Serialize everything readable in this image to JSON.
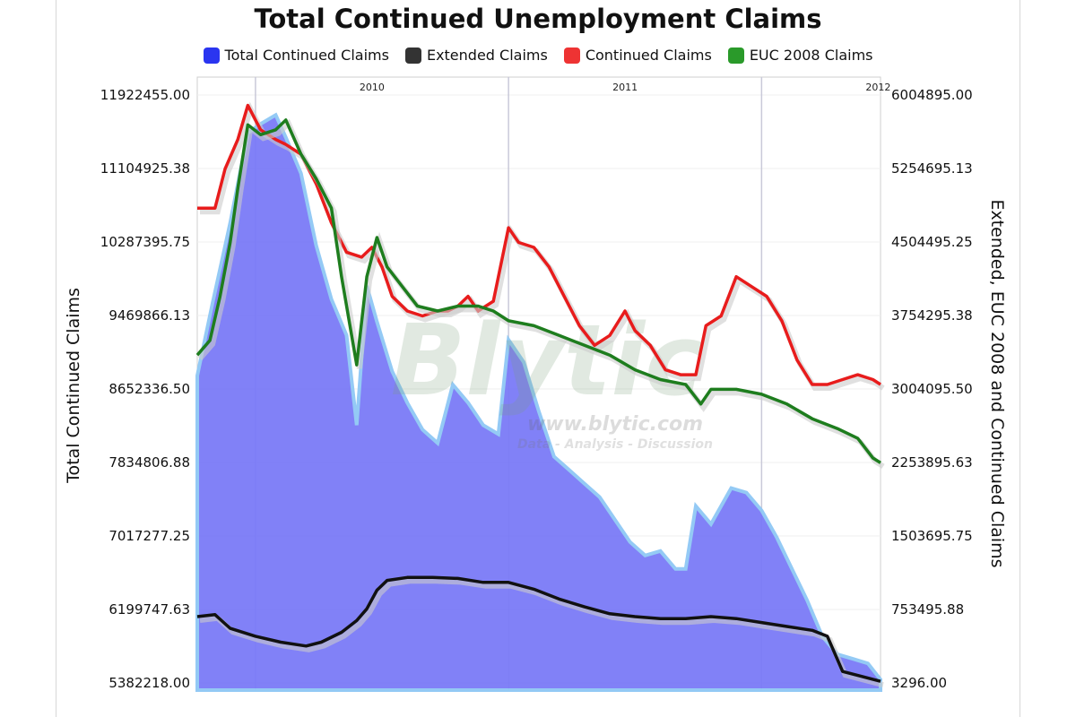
{
  "chart_data": {
    "type": "area+line",
    "title": "Total Continued Unemployment Claims",
    "y_left_label": "Total Continued Claims",
    "y_right_label": "Extended, EUC 2008 and Continued Claims",
    "y_left_ticks": [
      "11922455.00",
      "11104925.38",
      "10287395.75",
      "9469866.13",
      "8652336.50",
      "7834806.88",
      "7017277.25",
      "6199747.63",
      "5382218.00"
    ],
    "y_right_ticks": [
      "6004895.00",
      "5254695.13",
      "4504495.25",
      "3754295.38",
      "3004095.50",
      "2253895.63",
      "1503695.75",
      "753495.88",
      "3296.00"
    ],
    "ylim_left": [
      5382218,
      11922455
    ],
    "ylim_right": [
      3296,
      6004895
    ],
    "x_range": [
      2009.77,
      2012.47
    ],
    "year_labels": [
      {
        "label": "2010",
        "x": 2010
      },
      {
        "label": "2011",
        "x": 2011
      },
      {
        "label": "2012",
        "x": 2012
      }
    ],
    "grid": true,
    "legend_position": "top",
    "series": [
      {
        "name": "Total Continued Claims",
        "axis": "left",
        "color": "#7b7bf7",
        "style": "area",
        "points": [
          [
            2009.77,
            8800000
          ],
          [
            2009.83,
            9600000
          ],
          [
            2009.9,
            10500000
          ],
          [
            2009.97,
            11500000
          ],
          [
            2010.02,
            11600000
          ],
          [
            2010.08,
            11700000
          ],
          [
            2010.12,
            11450000
          ],
          [
            2010.18,
            11050000
          ],
          [
            2010.24,
            10250000
          ],
          [
            2010.3,
            9650000
          ],
          [
            2010.36,
            9250000
          ],
          [
            2010.4,
            8250000
          ],
          [
            2010.44,
            9800000
          ],
          [
            2010.48,
            9400000
          ],
          [
            2010.54,
            8850000
          ],
          [
            2010.6,
            8500000
          ],
          [
            2010.66,
            8200000
          ],
          [
            2010.72,
            8050000
          ],
          [
            2010.78,
            8700000
          ],
          [
            2010.84,
            8500000
          ],
          [
            2010.9,
            8250000
          ],
          [
            2010.96,
            8150000
          ],
          [
            2011.0,
            9200000
          ],
          [
            2011.06,
            8950000
          ],
          [
            2011.12,
            8400000
          ],
          [
            2011.18,
            7900000
          ],
          [
            2011.24,
            7750000
          ],
          [
            2011.3,
            7600000
          ],
          [
            2011.36,
            7450000
          ],
          [
            2011.42,
            7200000
          ],
          [
            2011.48,
            6950000
          ],
          [
            2011.54,
            6800000
          ],
          [
            2011.6,
            6850000
          ],
          [
            2011.66,
            6650000
          ],
          [
            2011.7,
            6650000
          ],
          [
            2011.74,
            7350000
          ],
          [
            2011.8,
            7150000
          ],
          [
            2011.88,
            7550000
          ],
          [
            2011.94,
            7500000
          ],
          [
            2012.0,
            7300000
          ],
          [
            2012.06,
            7000000
          ],
          [
            2012.12,
            6650000
          ],
          [
            2012.18,
            6300000
          ],
          [
            2012.24,
            5900000
          ],
          [
            2012.3,
            5700000
          ],
          [
            2012.36,
            5650000
          ],
          [
            2012.42,
            5600000
          ],
          [
            2012.47,
            5420000
          ]
        ]
      },
      {
        "name": "Extended Claims",
        "axis": "right",
        "color": "#111111",
        "style": "line",
        "points": [
          [
            2009.77,
            680000
          ],
          [
            2009.84,
            700000
          ],
          [
            2009.9,
            560000
          ],
          [
            2010.0,
            480000
          ],
          [
            2010.1,
            420000
          ],
          [
            2010.2,
            380000
          ],
          [
            2010.26,
            420000
          ],
          [
            2010.34,
            520000
          ],
          [
            2010.4,
            640000
          ],
          [
            2010.44,
            760000
          ],
          [
            2010.48,
            950000
          ],
          [
            2010.52,
            1050000
          ],
          [
            2010.6,
            1080000
          ],
          [
            2010.7,
            1080000
          ],
          [
            2010.8,
            1070000
          ],
          [
            2010.9,
            1030000
          ],
          [
            2011.0,
            1030000
          ],
          [
            2011.1,
            960000
          ],
          [
            2011.2,
            860000
          ],
          [
            2011.3,
            780000
          ],
          [
            2011.4,
            710000
          ],
          [
            2011.5,
            680000
          ],
          [
            2011.6,
            660000
          ],
          [
            2011.7,
            660000
          ],
          [
            2011.8,
            680000
          ],
          [
            2011.9,
            660000
          ],
          [
            2012.0,
            620000
          ],
          [
            2012.1,
            580000
          ],
          [
            2012.2,
            540000
          ],
          [
            2012.26,
            480000
          ],
          [
            2012.32,
            120000
          ],
          [
            2012.38,
            80000
          ],
          [
            2012.47,
            20000
          ]
        ]
      },
      {
        "name": "Continued Claims",
        "axis": "right",
        "color": "#e81c1c",
        "style": "line",
        "points": [
          [
            2009.77,
            4850000
          ],
          [
            2009.84,
            4850000
          ],
          [
            2009.88,
            5250000
          ],
          [
            2009.93,
            5550000
          ],
          [
            2009.97,
            5900000
          ],
          [
            2010.02,
            5650000
          ],
          [
            2010.08,
            5550000
          ],
          [
            2010.12,
            5500000
          ],
          [
            2010.18,
            5400000
          ],
          [
            2010.24,
            5100000
          ],
          [
            2010.3,
            4700000
          ],
          [
            2010.36,
            4400000
          ],
          [
            2010.42,
            4350000
          ],
          [
            2010.46,
            4450000
          ],
          [
            2010.5,
            4250000
          ],
          [
            2010.54,
            3950000
          ],
          [
            2010.6,
            3800000
          ],
          [
            2010.66,
            3750000
          ],
          [
            2010.72,
            3800000
          ],
          [
            2010.76,
            3800000
          ],
          [
            2010.8,
            3850000
          ],
          [
            2010.84,
            3950000
          ],
          [
            2010.88,
            3800000
          ],
          [
            2010.94,
            3900000
          ],
          [
            2011.0,
            4650000
          ],
          [
            2011.04,
            4500000
          ],
          [
            2011.1,
            4450000
          ],
          [
            2011.16,
            4250000
          ],
          [
            2011.22,
            3950000
          ],
          [
            2011.28,
            3650000
          ],
          [
            2011.34,
            3450000
          ],
          [
            2011.4,
            3550000
          ],
          [
            2011.46,
            3800000
          ],
          [
            2011.5,
            3600000
          ],
          [
            2011.56,
            3450000
          ],
          [
            2011.62,
            3200000
          ],
          [
            2011.68,
            3150000
          ],
          [
            2011.74,
            3150000
          ],
          [
            2011.78,
            3650000
          ],
          [
            2011.84,
            3750000
          ],
          [
            2011.9,
            4150000
          ],
          [
            2011.96,
            4050000
          ],
          [
            2012.02,
            3950000
          ],
          [
            2012.08,
            3700000
          ],
          [
            2012.14,
            3300000
          ],
          [
            2012.2,
            3050000
          ],
          [
            2012.26,
            3050000
          ],
          [
            2012.32,
            3100000
          ],
          [
            2012.38,
            3150000
          ],
          [
            2012.44,
            3100000
          ],
          [
            2012.47,
            3050000
          ]
        ]
      },
      {
        "name": "EUC 2008 Claims",
        "axis": "right",
        "color": "#1e7d1e",
        "style": "line",
        "points": [
          [
            2009.77,
            3350000
          ],
          [
            2009.82,
            3500000
          ],
          [
            2009.86,
            3950000
          ],
          [
            2009.9,
            4500000
          ],
          [
            2009.93,
            5050000
          ],
          [
            2009.97,
            5700000
          ],
          [
            2010.02,
            5600000
          ],
          [
            2010.08,
            5650000
          ],
          [
            2010.12,
            5750000
          ],
          [
            2010.18,
            5400000
          ],
          [
            2010.24,
            5150000
          ],
          [
            2010.3,
            4850000
          ],
          [
            2010.34,
            4150000
          ],
          [
            2010.4,
            3250000
          ],
          [
            2010.44,
            4150000
          ],
          [
            2010.48,
            4550000
          ],
          [
            2010.52,
            4250000
          ],
          [
            2010.58,
            4050000
          ],
          [
            2010.64,
            3850000
          ],
          [
            2010.72,
            3800000
          ],
          [
            2010.8,
            3850000
          ],
          [
            2010.88,
            3850000
          ],
          [
            2010.94,
            3800000
          ],
          [
            2011.0,
            3700000
          ],
          [
            2011.1,
            3650000
          ],
          [
            2011.2,
            3550000
          ],
          [
            2011.3,
            3450000
          ],
          [
            2011.4,
            3350000
          ],
          [
            2011.5,
            3200000
          ],
          [
            2011.6,
            3100000
          ],
          [
            2011.7,
            3050000
          ],
          [
            2011.76,
            2850000
          ],
          [
            2011.8,
            3000000
          ],
          [
            2011.9,
            3000000
          ],
          [
            2012.0,
            2950000
          ],
          [
            2012.1,
            2850000
          ],
          [
            2012.2,
            2700000
          ],
          [
            2012.3,
            2600000
          ],
          [
            2012.38,
            2500000
          ],
          [
            2012.44,
            2300000
          ],
          [
            2012.47,
            2250000
          ]
        ]
      }
    ]
  },
  "legend": [
    {
      "label": "Total Continued Claims",
      "color": "#2a35f0"
    },
    {
      "label": "Extended Claims",
      "color": "#333333"
    },
    {
      "label": "Continued Claims",
      "color": "#ee3333"
    },
    {
      "label": "EUC 2008 Claims",
      "color": "#2a9a2a"
    }
  ],
  "watermark": {
    "brand": "Blytic",
    "url": "www.blytic.com",
    "tagline": "Data - Analysis - Discussion"
  }
}
